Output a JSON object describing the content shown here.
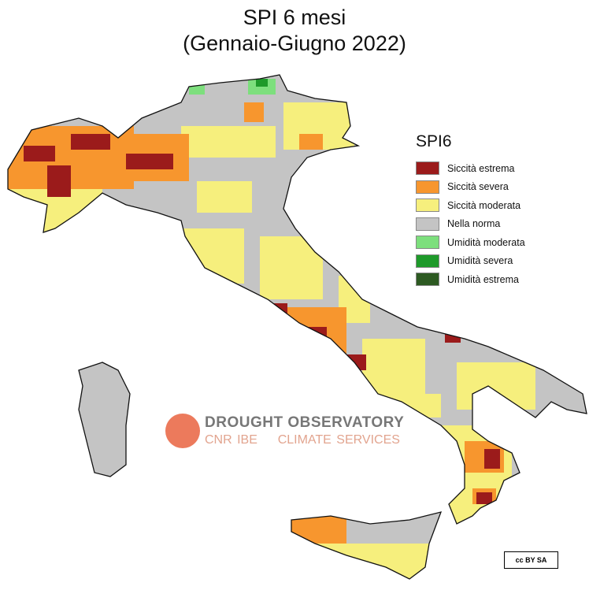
{
  "title": {
    "line1": "SPI 6 mesi",
    "line2": "(Gennaio-Giugno 2022)"
  },
  "legend": {
    "title": "SPI6",
    "items": [
      {
        "label": "Siccità estrema",
        "color": "#9b1b1b"
      },
      {
        "label": "Siccità severa",
        "color": "#f7962e"
      },
      {
        "label": "Siccità moderata",
        "color": "#f6ef7d"
      },
      {
        "label": "Nella norma",
        "color": "#c4c4c4"
      },
      {
        "label": "Umidità moderata",
        "color": "#7ddf7d"
      },
      {
        "label": "Umidità severa",
        "color": "#1e9a2a"
      },
      {
        "label": "Umidità estrema",
        "color": "#2d5a22"
      }
    ]
  },
  "watermark": {
    "line1": "DROUGHT OBSERVATORY",
    "line2a": "CNR IBE",
    "line2b": "CLIMATE SERVICES"
  },
  "license": {
    "text": "cc BY SA",
    "icon": "creative-commons-by-sa-icon"
  }
}
